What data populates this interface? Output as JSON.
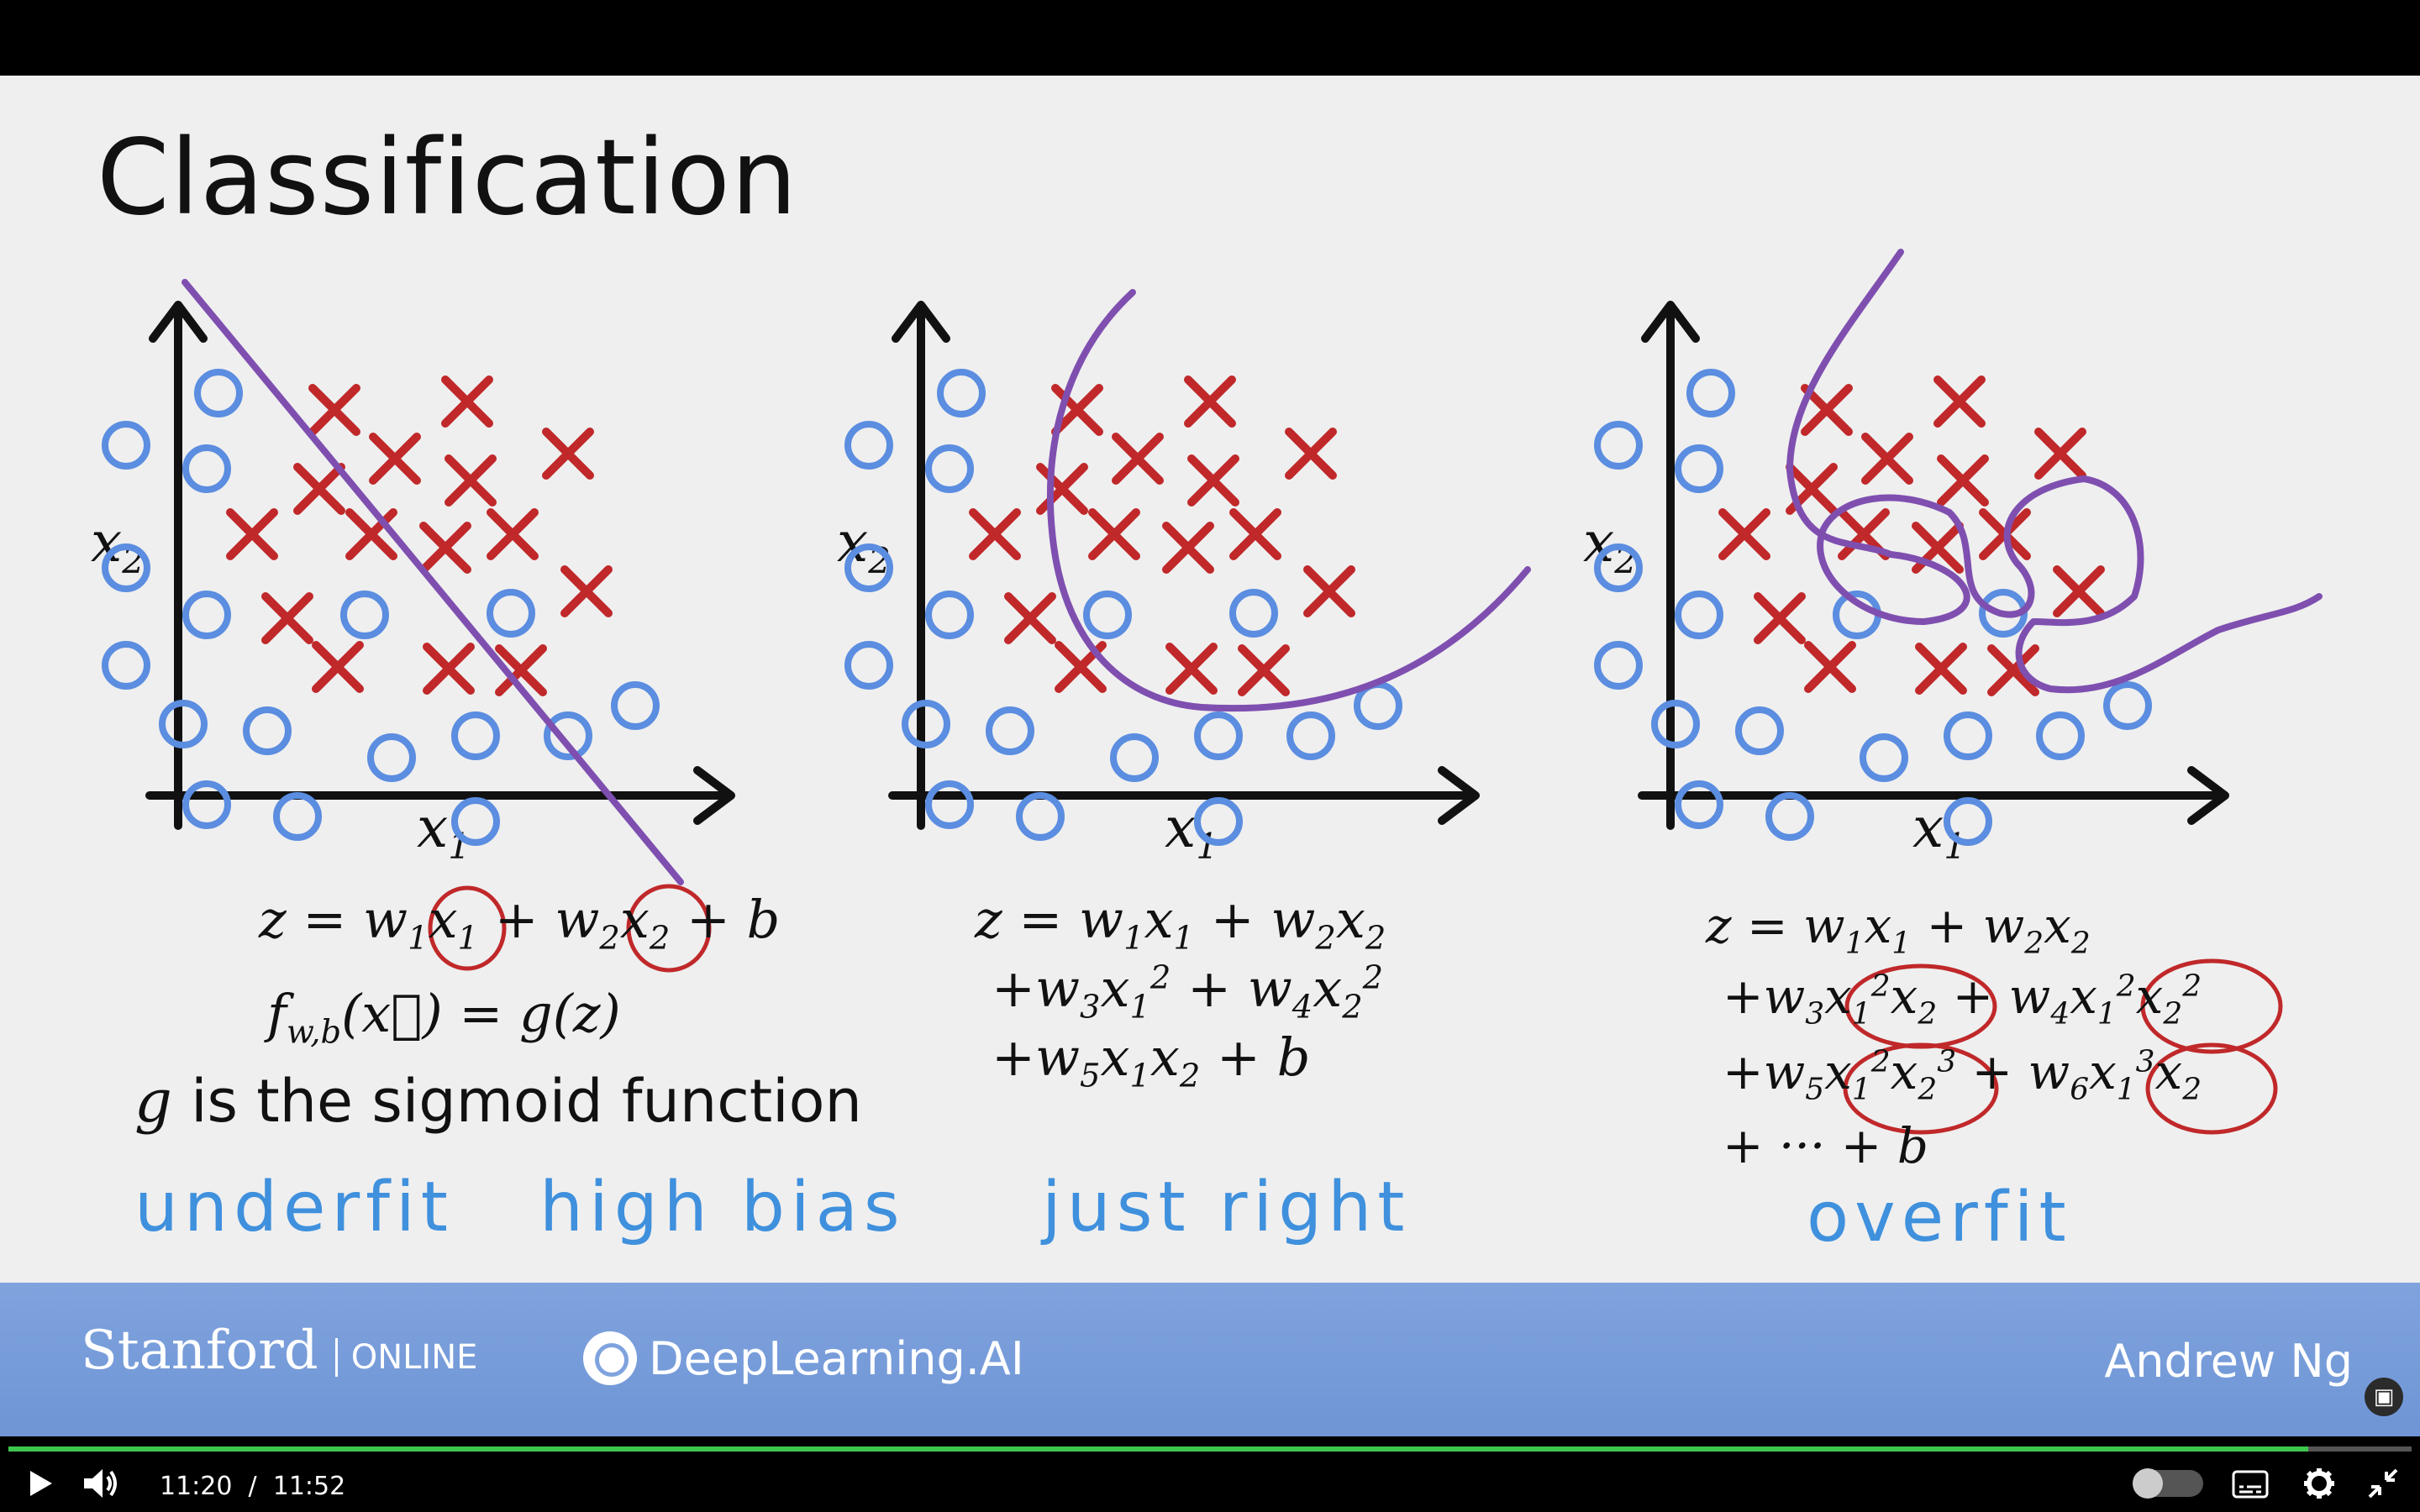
{
  "slide": {
    "title": "Classification",
    "panels": [
      {
        "ylabel": "x2",
        "xlabel": "x1",
        "equation_lines": [
          "z = w1x1 + w2x2 + b",
          "f w,b(x) = g(z)"
        ],
        "note": "g is the sigmoid function",
        "annotations": [
          "underfit",
          "high bias"
        ]
      },
      {
        "ylabel": "x2",
        "xlabel": "x1",
        "equation_lines": [
          "z = w1x1 + w2x2",
          "+w3x1^2 + w4x2^2",
          "+w5x1x2 + b"
        ],
        "annotations": [
          "just right"
        ]
      },
      {
        "ylabel": "x2",
        "xlabel": "x1",
        "equation_lines": [
          "z = w1x1 + w2x2",
          "+w3x1^2x2 + w4x1^2x2^2",
          "+w5x1^2x2^3 + w6x1^3x2",
          "+ ··· + b"
        ],
        "annotations": [
          "overfit"
        ]
      }
    ],
    "colors": {
      "circle": "#5b8de0",
      "cross": "#c0282a",
      "boundary": "#7f4fb0",
      "annotation": "#3f90dd"
    }
  },
  "footer": {
    "stanford": "Stanford",
    "online": "ONLINE",
    "deeplearning": "DeepLearning.AI",
    "presenter": "Andrew Ng"
  },
  "player": {
    "current_time": "11:20",
    "separator": "/",
    "duration": "11:52",
    "progress_fraction": 0.957,
    "icons": [
      "play-icon",
      "volume-icon",
      "autoplay-toggle-icon",
      "captions-icon",
      "settings-icon",
      "exit-fullscreen-icon"
    ]
  }
}
